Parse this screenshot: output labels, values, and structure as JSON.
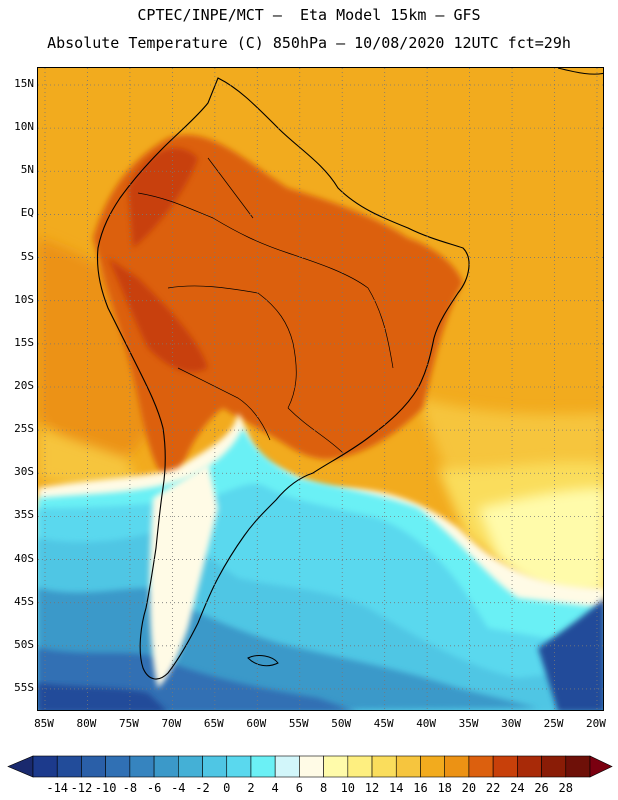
{
  "header": {
    "line1": "CPTEC/INPE/MCT –  Eta Model 15km – GFS",
    "line2": "Absolute Temperature (C) 850hPa – 10/08/2020 12UTC fct=29h"
  },
  "map": {
    "lat_labels": [
      "15N",
      "10N",
      "5N",
      "EQ",
      "5S",
      "10S",
      "15S",
      "20S",
      "25S",
      "30S",
      "35S",
      "40S",
      "45S",
      "50S",
      "55S"
    ],
    "lon_labels": [
      "85W",
      "80W",
      "75W",
      "70W",
      "65W",
      "60W",
      "55W",
      "50W",
      "45W",
      "40W",
      "35W",
      "30W",
      "25W",
      "20W"
    ],
    "gridlines": "dotted"
  },
  "colorbar": {
    "labels": [
      "-14",
      "-12",
      "-10",
      "-8",
      "-6",
      "-4",
      "-2",
      "0",
      "2",
      "4",
      "6",
      "8",
      "10",
      "12",
      "14",
      "16",
      "18",
      "20",
      "22",
      "24",
      "26",
      "28"
    ],
    "colors": [
      "#1c3a8c",
      "#224c9a",
      "#2a5fa8",
      "#3070b4",
      "#3684bf",
      "#3b99c9",
      "#44b0d6",
      "#4fc6e4",
      "#5ad8ee",
      "#6bf0f5",
      "#d2f6fa",
      "#fffbe6",
      "#fffbaa",
      "#feef80",
      "#fadd5c",
      "#f6c53e",
      "#f2ab1e",
      "#ec9214",
      "#dc600e",
      "#c8400a",
      "#a82a08",
      "#8a1c06",
      "#6e1008"
    ],
    "arrow_left_color": "#1a2a6e",
    "arrow_right_color": "#7a0010"
  }
}
